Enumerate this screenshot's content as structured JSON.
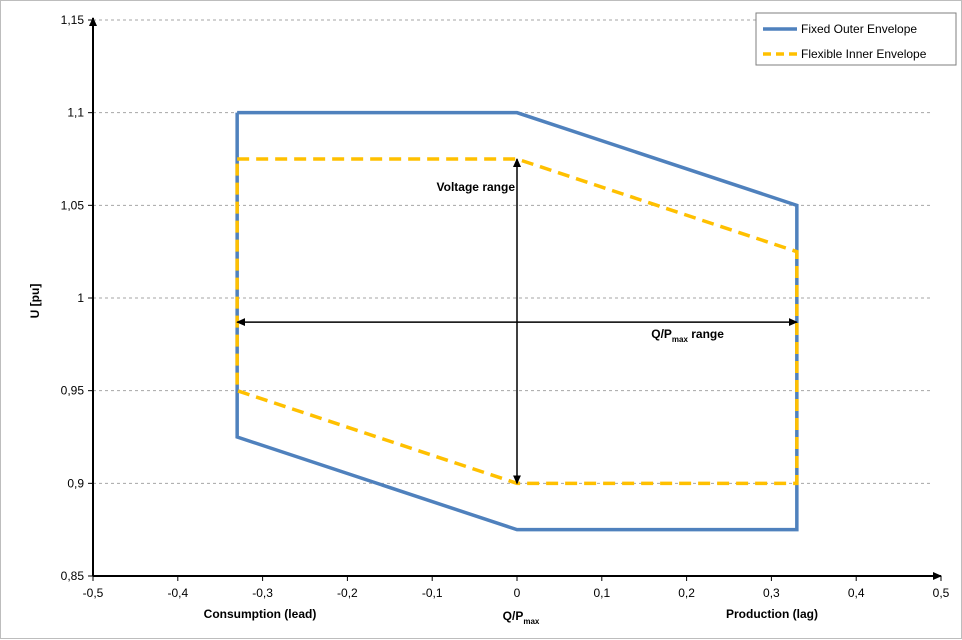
{
  "chart_data": {
    "type": "line",
    "title": "",
    "xlabel": "Q/P",
    "xlabel_sub": "max",
    "ylabel": "U [pu]",
    "x_side_labels": {
      "left": "Consumption (lead)",
      "right": "Production (lag)"
    },
    "xlim": [
      -0.5,
      0.5
    ],
    "ylim": [
      0.85,
      1.15
    ],
    "x_ticks": [
      -0.5,
      -0.4,
      -0.3,
      -0.2,
      -0.1,
      0,
      0.1,
      0.2,
      0.3,
      0.4,
      0.5
    ],
    "x_tick_labels": [
      "-0,5",
      "-0,4",
      "-0,3",
      "-0,2",
      "-0,1",
      "0",
      "0,1",
      "0,2",
      "0,3",
      "0,4",
      "0,5"
    ],
    "y_ticks": [
      0.85,
      0.9,
      0.95,
      1.0,
      1.05,
      1.1,
      1.15
    ],
    "y_tick_labels": [
      "0,85",
      "0,9",
      "0,95",
      "1",
      "1,05",
      "1,1",
      "1,15"
    ],
    "grid": {
      "horizontal": true,
      "vertical": false
    },
    "legend_position": "top-right",
    "series": [
      {
        "name": "Fixed Outer Envelope",
        "color": "#4f81bd",
        "style": "solid",
        "x": [
          -0.33,
          0,
          0.33,
          0.33,
          0,
          -0.33,
          -0.33
        ],
        "y": [
          1.1,
          1.1,
          1.05,
          0.875,
          0.875,
          0.925,
          1.1
        ]
      },
      {
        "name": "Flexible Inner Envelope",
        "color": "#ffc000",
        "style": "dashed",
        "x": [
          -0.33,
          0,
          0.33,
          0.33,
          0,
          -0.33,
          -0.33
        ],
        "y": [
          1.075,
          1.075,
          1.025,
          0.9,
          0.9,
          0.95,
          1.075
        ]
      }
    ],
    "annotations": [
      {
        "text": "Voltage range",
        "type": "double-arrow-vertical",
        "x": 0,
        "y_from": 1.075,
        "y_to": 0.9,
        "label_x": 0,
        "label_y": 1.06
      },
      {
        "text": "Q/P",
        "sub": "max",
        "suffix": " range",
        "type": "double-arrow-horizontal",
        "y": 0.987,
        "x_from": -0.33,
        "x_to": 0.33,
        "label_x": 0.2,
        "label_y": 0.987
      }
    ]
  }
}
